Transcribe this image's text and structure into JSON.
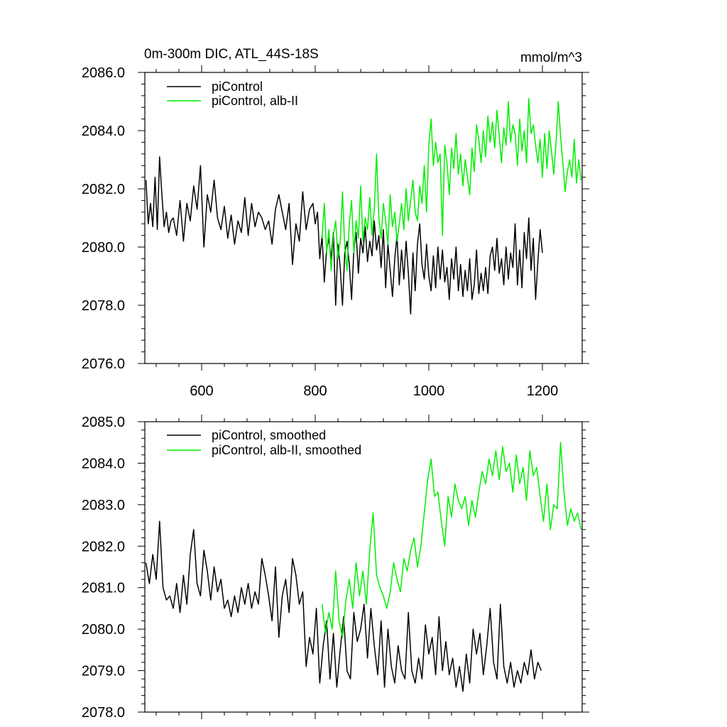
{
  "colors": {
    "control": "#000000",
    "albII": "#00ee00",
    "axis": "#000000"
  },
  "chart_data": [
    {
      "type": "line",
      "title_left": "0m-300m DIC, ATL_44S-18S",
      "title_right": "mmol/m^3",
      "xlim": [
        500,
        1270
      ],
      "ylim": [
        2076.0,
        2086.0
      ],
      "xticks": [
        600,
        800,
        1000,
        1200
      ],
      "xtick_labels": [
        "600",
        "800",
        "1000",
        "1200"
      ],
      "yticks": [
        2076.0,
        2078.0,
        2080.0,
        2082.0,
        2084.0,
        2086.0
      ],
      "ytick_labels": [
        "2076.0",
        "2078.0",
        "2080.0",
        "2082.0",
        "2084.0",
        "2086.0"
      ],
      "legend_position": "top-left",
      "series": [
        {
          "name": "piControl",
          "color": "#000000",
          "x": [
            502,
            506,
            510,
            514,
            518,
            522,
            526,
            530,
            534,
            538,
            542,
            546,
            550,
            556,
            562,
            568,
            574,
            580,
            586,
            592,
            598,
            604,
            610,
            616,
            622,
            628,
            634,
            640,
            646,
            652,
            658,
            664,
            670,
            676,
            682,
            688,
            694,
            700,
            706,
            712,
            718,
            724,
            730,
            736,
            742,
            748,
            754,
            760,
            766,
            772,
            778,
            784,
            790,
            796,
            800,
            804,
            808,
            812,
            816,
            820,
            824,
            828,
            832,
            836,
            840,
            844,
            848,
            852,
            856,
            860,
            864,
            868,
            872,
            876,
            880,
            884,
            888,
            892,
            896,
            900,
            904,
            908,
            912,
            916,
            920,
            924,
            928,
            932,
            936,
            940,
            944,
            948,
            952,
            956,
            960,
            964,
            968,
            972,
            976,
            980,
            984,
            988,
            992,
            996,
            1000,
            1004,
            1008,
            1012,
            1016,
            1020,
            1024,
            1028,
            1032,
            1036,
            1040,
            1044,
            1048,
            1052,
            1056,
            1060,
            1064,
            1068,
            1072,
            1076,
            1080,
            1084,
            1088,
            1092,
            1096,
            1100,
            1104,
            1108,
            1112,
            1116,
            1120,
            1124,
            1128,
            1132,
            1136,
            1140,
            1144,
            1148,
            1152,
            1156,
            1160,
            1164,
            1168,
            1172,
            1176,
            1180,
            1184,
            1188,
            1192,
            1196,
            1200
          ],
          "values": [
            2082.3,
            2080.8,
            2081.5,
            2080.7,
            2082.4,
            2080.6,
            2083.1,
            2081.8,
            2080.7,
            2081.2,
            2080.5,
            2080.9,
            2081.0,
            2080.4,
            2081.6,
            2080.2,
            2081.5,
            2080.9,
            2082.1,
            2081.3,
            2082.8,
            2080.0,
            2081.8,
            2081.2,
            2082.3,
            2081.0,
            2080.6,
            2081.4,
            2080.3,
            2081.1,
            2080.1,
            2080.9,
            2080.5,
            2081.7,
            2080.4,
            2081.5,
            2080.7,
            2081.2,
            2081.0,
            2080.6,
            2080.9,
            2080.1,
            2081.3,
            2081.8,
            2081.2,
            2080.6,
            2081.5,
            2079.4,
            2080.8,
            2080.2,
            2081.9,
            2080.6,
            2081.3,
            2081.5,
            2080.8,
            2081.2,
            2079.6,
            2080.4,
            2078.8,
            2079.9,
            2080.3,
            2079.6,
            2080.5,
            2078.0,
            2080.1,
            2079.3,
            2078.0,
            2079.8,
            2080.2,
            2079.4,
            2078.2,
            2079.9,
            2080.5,
            2079.1,
            2080.3,
            2079.8,
            2080.7,
            2079.5,
            2080.2,
            2079.7,
            2080.9,
            2079.9,
            2080.4,
            2079.3,
            2080.6,
            2078.6,
            2080.1,
            2079.2,
            2078.3,
            2079.6,
            2080.4,
            2078.7,
            2079.9,
            2078.9,
            2080.2,
            2079.1,
            2077.7,
            2079.8,
            2078.5,
            2080.1,
            2080.8,
            2079.4,
            2078.9,
            2080.1,
            2079.0,
            2078.5,
            2079.7,
            2078.6,
            2080.0,
            2078.9,
            2079.9,
            2078.8,
            2079.3,
            2078.2,
            2079.6,
            2078.9,
            2080.0,
            2078.5,
            2079.4,
            2078.3,
            2079.2,
            2078.5,
            2079.6,
            2078.2,
            2078.7,
            2079.9,
            2078.4,
            2079.1,
            2078.5,
            2079.3,
            2078.4,
            2079.7,
            2080.0,
            2079.2,
            2080.3,
            2079.1,
            2079.6,
            2078.7,
            2080.0,
            2078.9,
            2079.8,
            2079.3,
            2080.8,
            2078.7,
            2079.9,
            2078.6,
            2080.5,
            2079.6,
            2081.0,
            2079.2,
            2080.3,
            2078.2,
            2079.5,
            2080.6,
            2079.8
          ],
          "values_note": "high-frequency annual values; plotted at displayed resolution"
        },
        {
          "name": "piControl, alb-II",
          "color": "#00ee00",
          "x": [
            812,
            816,
            820,
            824,
            828,
            832,
            836,
            840,
            844,
            848,
            852,
            856,
            860,
            864,
            868,
            872,
            876,
            880,
            884,
            888,
            892,
            896,
            900,
            904,
            908,
            912,
            916,
            920,
            924,
            928,
            932,
            936,
            940,
            944,
            948,
            952,
            956,
            960,
            964,
            968,
            972,
            976,
            980,
            984,
            988,
            992,
            996,
            1000,
            1004,
            1008,
            1012,
            1016,
            1020,
            1024,
            1028,
            1032,
            1036,
            1040,
            1044,
            1048,
            1052,
            1056,
            1060,
            1064,
            1068,
            1072,
            1076,
            1080,
            1084,
            1088,
            1092,
            1096,
            1100,
            1104,
            1108,
            1112,
            1116,
            1120,
            1124,
            1128,
            1132,
            1136,
            1140,
            1144,
            1148,
            1152,
            1156,
            1160,
            1164,
            1168,
            1172,
            1176,
            1180,
            1184,
            1188,
            1192,
            1196,
            1200,
            1204,
            1208,
            1212,
            1216,
            1220,
            1224,
            1228,
            1232,
            1236,
            1240,
            1244,
            1248,
            1252,
            1256,
            1260,
            1264,
            1268
          ],
          "values": [
            2080.3,
            2081.5,
            2079.8,
            2080.6,
            2079.2,
            2080.4,
            2080.9,
            2079.6,
            2080.2,
            2081.9,
            2080.0,
            2079.2,
            2080.8,
            2081.6,
            2079.8,
            2080.9,
            2080.3,
            2082.1,
            2080.2,
            2081.0,
            2080.6,
            2081.7,
            2080.4,
            2081.3,
            2083.2,
            2081.0,
            2080.3,
            2081.5,
            2080.9,
            2080.1,
            2081.8,
            2080.7,
            2081.2,
            2080.2,
            2080.8,
            2081.5,
            2080.6,
            2082.0,
            2080.9,
            2081.6,
            2082.3,
            2081.2,
            2080.9,
            2082.1,
            2081.5,
            2082.8,
            2081.2,
            2083.5,
            2084.4,
            2082.8,
            2083.6,
            2082.9,
            2083.2,
            2080.4,
            2083.5,
            2082.9,
            2081.8,
            2083.4,
            2082.7,
            2083.9,
            2082.5,
            2083.2,
            2082.1,
            2083.0,
            2082.4,
            2081.8,
            2083.4,
            2082.6,
            2084.2,
            2083.7,
            2082.9,
            2084.0,
            2083.1,
            2084.5,
            2083.6,
            2084.3,
            2083.4,
            2084.7,
            2083.8,
            2082.9,
            2084.1,
            2083.5,
            2085.0,
            2083.6,
            2084.2,
            2083.9,
            2082.8,
            2084.4,
            2083.3,
            2084.0,
            2082.9,
            2085.1,
            2083.9,
            2084.2,
            2083.5,
            2082.9,
            2083.7,
            2082.4,
            2083.9,
            2082.7,
            2084.0,
            2083.3,
            2082.5,
            2083.6,
            2085.0,
            2083.8,
            2082.9,
            2081.9,
            2082.6,
            2083.0,
            2082.4,
            2083.7,
            2082.2,
            2083.0,
            2082.3
          ],
          "values_note": "high-frequency annual values; plotted at displayed resolution"
        }
      ]
    },
    {
      "type": "line",
      "xlim": [
        500,
        1270
      ],
      "ylim": [
        2078.0,
        2085.0
      ],
      "xticks": [
        600,
        800,
        1000,
        1200
      ],
      "xtick_labels": [],
      "yticks": [
        2078.0,
        2079.0,
        2080.0,
        2081.0,
        2082.0,
        2083.0,
        2084.0,
        2085.0
      ],
      "ytick_labels": [
        "2078.0",
        "2079.0",
        "2080.0",
        "2081.0",
        "2082.0",
        "2083.0",
        "2084.0",
        "2085.0"
      ],
      "legend_position": "top-left",
      "series": [
        {
          "name": "piControl, smoothed",
          "color": "#000000",
          "x": [
            502,
            508,
            514,
            520,
            526,
            532,
            538,
            544,
            550,
            556,
            562,
            568,
            574,
            580,
            586,
            592,
            598,
            604,
            610,
            616,
            622,
            628,
            634,
            640,
            646,
            652,
            658,
            664,
            670,
            676,
            682,
            688,
            694,
            700,
            706,
            712,
            718,
            724,
            730,
            736,
            742,
            748,
            754,
            760,
            766,
            772,
            778,
            784,
            790,
            796,
            802,
            808,
            814,
            820,
            826,
            832,
            838,
            844,
            850,
            856,
            862,
            868,
            874,
            880,
            886,
            892,
            898,
            904,
            910,
            916,
            922,
            928,
            934,
            940,
            946,
            952,
            958,
            964,
            970,
            976,
            982,
            988,
            994,
            1000,
            1006,
            1012,
            1018,
            1024,
            1030,
            1036,
            1042,
            1048,
            1054,
            1060,
            1066,
            1072,
            1078,
            1084,
            1090,
            1096,
            1102,
            1108,
            1114,
            1120,
            1126,
            1132,
            1138,
            1144,
            1150,
            1156,
            1162,
            1168,
            1174,
            1180,
            1186,
            1192,
            1198
          ],
          "values": [
            2081.6,
            2081.1,
            2081.8,
            2081.2,
            2082.6,
            2081.0,
            2080.7,
            2080.8,
            2080.5,
            2081.1,
            2080.4,
            2081.3,
            2080.6,
            2081.8,
            2082.4,
            2081.1,
            2080.8,
            2081.9,
            2081.4,
            2080.7,
            2081.5,
            2080.9,
            2081.2,
            2080.5,
            2080.7,
            2080.3,
            2080.8,
            2080.4,
            2081.0,
            2080.6,
            2081.1,
            2080.5,
            2080.9,
            2080.6,
            2081.7,
            2081.3,
            2080.8,
            2080.2,
            2081.5,
            2079.8,
            2080.8,
            2081.2,
            2080.4,
            2081.7,
            2081.3,
            2080.6,
            2080.9,
            2079.1,
            2079.8,
            2079.4,
            2080.5,
            2078.7,
            2079.6,
            2080.2,
            2078.8,
            2079.9,
            2078.6,
            2079.5,
            2080.3,
            2079.0,
            2078.8,
            2080.4,
            2079.7,
            2080.0,
            2080.6,
            2079.3,
            2080.5,
            2079.6,
            2078.9,
            2080.2,
            2078.6,
            2080.0,
            2079.1,
            2078.7,
            2079.6,
            2079.0,
            2078.8,
            2080.4,
            2079.0,
            2078.7,
            2079.3,
            2078.8,
            2080.1,
            2079.4,
            2079.8,
            2078.9,
            2080.3,
            2079.0,
            2079.7,
            2078.9,
            2079.3,
            2078.6,
            2079.1,
            2078.5,
            2079.4,
            2078.7,
            2080.0,
            2079.4,
            2079.9,
            2078.9,
            2079.6,
            2080.5,
            2079.2,
            2078.8,
            2080.6,
            2079.1,
            2078.7,
            2079.2,
            2078.6,
            2079.0,
            2078.7,
            2079.2,
            2078.9,
            2079.5,
            2078.8,
            2079.2,
            2079.0
          ],
          "values_note": "smoothed series; plotted at displayed resolution"
        },
        {
          "name": "piControl, alb-II, smoothed",
          "color": "#00ee00",
          "x": [
            812,
            818,
            824,
            830,
            836,
            842,
            848,
            854,
            860,
            866,
            872,
            878,
            884,
            890,
            896,
            902,
            908,
            914,
            920,
            926,
            932,
            938,
            944,
            950,
            956,
            962,
            968,
            974,
            980,
            986,
            992,
            998,
            1004,
            1010,
            1016,
            1022,
            1028,
            1034,
            1040,
            1046,
            1052,
            1058,
            1064,
            1070,
            1076,
            1082,
            1088,
            1094,
            1100,
            1106,
            1112,
            1118,
            1124,
            1130,
            1136,
            1142,
            1148,
            1154,
            1160,
            1166,
            1172,
            1178,
            1184,
            1190,
            1196,
            1202,
            1208,
            1214,
            1220,
            1226,
            1232,
            1238,
            1244,
            1250,
            1256,
            1262,
            1268
          ],
          "values": [
            2080.6,
            2079.9,
            2080.4,
            2080.0,
            2081.4,
            2080.2,
            2079.8,
            2080.7,
            2081.2,
            2080.5,
            2081.6,
            2080.8,
            2081.4,
            2080.6,
            2081.9,
            2082.8,
            2081.3,
            2081.0,
            2080.8,
            2080.5,
            2080.9,
            2081.6,
            2081.2,
            2080.9,
            2081.7,
            2081.4,
            2081.9,
            2082.2,
            2081.5,
            2082.0,
            2082.8,
            2083.6,
            2084.1,
            2083.2,
            2083.3,
            2082.6,
            2082.0,
            2083.2,
            2082.7,
            2083.5,
            2083.1,
            2082.9,
            2083.2,
            2082.5,
            2083.1,
            2082.7,
            2083.3,
            2083.8,
            2083.5,
            2084.1,
            2083.7,
            2084.3,
            2083.6,
            2084.4,
            2083.8,
            2084.0,
            2083.3,
            2084.2,
            2083.5,
            2083.9,
            2083.1,
            2084.3,
            2083.7,
            2083.9,
            2083.2,
            2082.6,
            2083.5,
            2082.4,
            2083.0,
            2082.9,
            2084.5,
            2083.3,
            2082.5,
            2082.9,
            2082.6,
            2082.8,
            2082.4
          ],
          "values_note": "smoothed series; plotted at displayed resolution"
        }
      ]
    }
  ]
}
